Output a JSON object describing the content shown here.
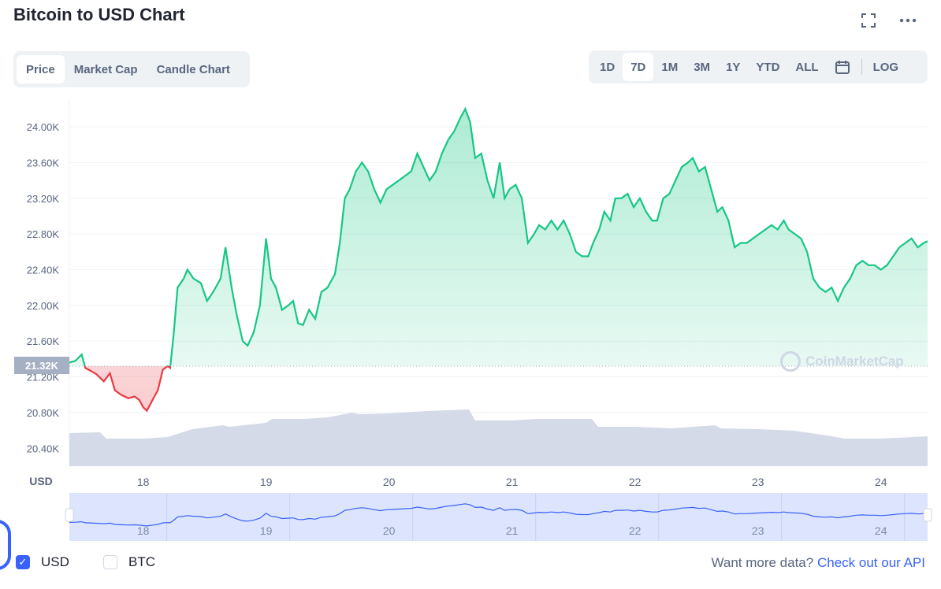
{
  "header": {
    "title": "Bitcoin to USD Chart",
    "fullscreen_icon": "fullscreen-icon",
    "more_icon": "more-icon",
    "more_glyph": "⋯",
    "fullscreen_glyph": "⛶"
  },
  "tabs": [
    {
      "label": "Price",
      "active": true
    },
    {
      "label": "Market Cap",
      "active": false
    },
    {
      "label": "Candle Chart",
      "active": false
    }
  ],
  "ranges": [
    {
      "label": "1D",
      "active": false
    },
    {
      "label": "7D",
      "active": true
    },
    {
      "label": "1M",
      "active": false
    },
    {
      "label": "3M",
      "active": false
    },
    {
      "label": "1Y",
      "active": false
    },
    {
      "label": "YTD",
      "active": false
    },
    {
      "label": "ALL",
      "active": false
    }
  ],
  "calendar_icon": "calendar-icon",
  "log_label": "LOG",
  "price_tag": "21.32K",
  "watermark": "CoinMarketCap",
  "legend": {
    "usd": {
      "label": "USD",
      "checked": true
    },
    "btc": {
      "label": "BTC",
      "checked": false
    }
  },
  "api_text": "Want more data?",
  "api_link": "Check out our API",
  "colors": {
    "up": "#16c784",
    "down": "#ea3943",
    "volume": "#cfd6e4",
    "nav_line": "#3861fb",
    "nav_fill": "#dde4fd",
    "text_muted": "#58667e"
  },
  "chart_data": {
    "type": "line",
    "currency_label": "USD",
    "ylim": [
      20200,
      24300
    ],
    "y_ticks": [
      "20.40K",
      "20.80K",
      "21.20K",
      "21.60K",
      "22.00K",
      "22.40K",
      "22.80K",
      "23.20K",
      "23.60K",
      "24.00K"
    ],
    "y_tick_values": [
      20400,
      20800,
      21200,
      21600,
      22000,
      22400,
      22800,
      23200,
      23600,
      24000
    ],
    "x_ticks": [
      "18",
      "19",
      "20",
      "21",
      "22",
      "23",
      "24"
    ],
    "x_tick_values": [
      18,
      19,
      20,
      21,
      22,
      23,
      24
    ],
    "xlim": [
      17.4,
      24.38
    ],
    "baseline": 21320,
    "series": [
      {
        "values": [
          [
            17.4,
            21360
          ],
          [
            17.45,
            21380
          ],
          [
            17.5,
            21450
          ],
          [
            17.53,
            21300
          ],
          [
            17.57,
            21270
          ],
          [
            17.62,
            21230
          ],
          [
            17.68,
            21150
          ],
          [
            17.73,
            21240
          ],
          [
            17.77,
            21050
          ],
          [
            17.82,
            21000
          ],
          [
            17.88,
            20960
          ],
          [
            17.93,
            20980
          ],
          [
            17.97,
            20940
          ],
          [
            18.0,
            20860
          ],
          [
            18.03,
            20820
          ],
          [
            18.08,
            20950
          ],
          [
            18.12,
            21050
          ],
          [
            18.16,
            21280
          ],
          [
            18.2,
            21320
          ],
          [
            18.22,
            21300
          ],
          [
            18.25,
            21700
          ],
          [
            18.28,
            22200
          ],
          [
            18.33,
            22300
          ],
          [
            18.36,
            22400
          ],
          [
            18.41,
            22300
          ],
          [
            18.47,
            22250
          ],
          [
            18.52,
            22050
          ],
          [
            18.57,
            22150
          ],
          [
            18.63,
            22300
          ],
          [
            18.67,
            22650
          ],
          [
            18.72,
            22200
          ],
          [
            18.76,
            21900
          ],
          [
            18.81,
            21600
          ],
          [
            18.85,
            21550
          ],
          [
            18.9,
            21700
          ],
          [
            18.95,
            22000
          ],
          [
            19.0,
            22750
          ],
          [
            19.04,
            22300
          ],
          [
            19.08,
            22200
          ],
          [
            19.13,
            21950
          ],
          [
            19.18,
            22000
          ],
          [
            19.22,
            22050
          ],
          [
            19.26,
            21800
          ],
          [
            19.3,
            21780
          ],
          [
            19.35,
            21950
          ],
          [
            19.4,
            21850
          ],
          [
            19.45,
            22150
          ],
          [
            19.5,
            22200
          ],
          [
            19.56,
            22350
          ],
          [
            19.6,
            22700
          ],
          [
            19.64,
            23200
          ],
          [
            19.68,
            23300
          ],
          [
            19.73,
            23500
          ],
          [
            19.78,
            23600
          ],
          [
            19.83,
            23500
          ],
          [
            19.88,
            23300
          ],
          [
            19.93,
            23150
          ],
          [
            19.98,
            23300
          ],
          [
            20.03,
            23350
          ],
          [
            20.08,
            23400
          ],
          [
            20.13,
            23450
          ],
          [
            20.18,
            23500
          ],
          [
            20.23,
            23700
          ],
          [
            20.28,
            23550
          ],
          [
            20.33,
            23400
          ],
          [
            20.38,
            23500
          ],
          [
            20.43,
            23700
          ],
          [
            20.48,
            23850
          ],
          [
            20.53,
            23950
          ],
          [
            20.58,
            24100
          ],
          [
            20.62,
            24200
          ],
          [
            20.66,
            24050
          ],
          [
            20.7,
            23650
          ],
          [
            20.75,
            23700
          ],
          [
            20.8,
            23400
          ],
          [
            20.85,
            23200
          ],
          [
            20.9,
            23600
          ],
          [
            20.94,
            23200
          ],
          [
            20.98,
            23300
          ],
          [
            21.03,
            23350
          ],
          [
            21.08,
            23200
          ],
          [
            21.13,
            22700
          ],
          [
            21.18,
            22800
          ],
          [
            21.22,
            22900
          ],
          [
            21.27,
            22850
          ],
          [
            21.32,
            22950
          ],
          [
            21.37,
            22850
          ],
          [
            21.42,
            22950
          ],
          [
            21.47,
            22800
          ],
          [
            21.52,
            22600
          ],
          [
            21.57,
            22550
          ],
          [
            21.62,
            22550
          ],
          [
            21.66,
            22700
          ],
          [
            21.71,
            22850
          ],
          [
            21.75,
            23050
          ],
          [
            21.8,
            22950
          ],
          [
            21.84,
            23200
          ],
          [
            21.89,
            23200
          ],
          [
            21.94,
            23250
          ],
          [
            21.99,
            23100
          ],
          [
            22.04,
            23200
          ],
          [
            22.09,
            23050
          ],
          [
            22.14,
            22950
          ],
          [
            22.18,
            22950
          ],
          [
            22.23,
            23200
          ],
          [
            22.28,
            23250
          ],
          [
            22.33,
            23400
          ],
          [
            22.38,
            23550
          ],
          [
            22.43,
            23600
          ],
          [
            22.47,
            23650
          ],
          [
            22.52,
            23500
          ],
          [
            22.57,
            23550
          ],
          [
            22.62,
            23300
          ],
          [
            22.67,
            23050
          ],
          [
            22.71,
            23100
          ],
          [
            22.76,
            22950
          ],
          [
            22.81,
            22650
          ],
          [
            22.86,
            22700
          ],
          [
            22.91,
            22700
          ],
          [
            22.96,
            22750
          ],
          [
            23.01,
            22800
          ],
          [
            23.06,
            22850
          ],
          [
            23.11,
            22900
          ],
          [
            23.16,
            22850
          ],
          [
            23.21,
            22950
          ],
          [
            23.25,
            22850
          ],
          [
            23.3,
            22800
          ],
          [
            23.35,
            22750
          ],
          [
            23.4,
            22600
          ],
          [
            23.45,
            22300
          ],
          [
            23.5,
            22200
          ],
          [
            23.55,
            22150
          ],
          [
            23.6,
            22200
          ],
          [
            23.65,
            22050
          ],
          [
            23.7,
            22200
          ],
          [
            23.75,
            22300
          ],
          [
            23.8,
            22450
          ],
          [
            23.85,
            22500
          ],
          [
            23.9,
            22450
          ],
          [
            23.95,
            22450
          ],
          [
            24.0,
            22400
          ],
          [
            24.05,
            22450
          ],
          [
            24.1,
            22550
          ],
          [
            24.15,
            22650
          ],
          [
            24.2,
            22700
          ],
          [
            24.25,
            22750
          ],
          [
            24.3,
            22650
          ],
          [
            24.35,
            22700
          ],
          [
            24.38,
            22720
          ]
        ]
      }
    ],
    "volume": [
      [
        17.4,
        0.42
      ],
      [
        17.65,
        0.43
      ],
      [
        17.7,
        0.35
      ],
      [
        18.0,
        0.35
      ],
      [
        18.2,
        0.37
      ],
      [
        18.4,
        0.47
      ],
      [
        18.65,
        0.52
      ],
      [
        18.7,
        0.5
      ],
      [
        19.0,
        0.55
      ],
      [
        19.05,
        0.6
      ],
      [
        19.3,
        0.6
      ],
      [
        19.5,
        0.62
      ],
      [
        19.7,
        0.68
      ],
      [
        19.75,
        0.66
      ],
      [
        20.0,
        0.67
      ],
      [
        20.3,
        0.7
      ],
      [
        20.65,
        0.72
      ],
      [
        20.7,
        0.58
      ],
      [
        21.0,
        0.58
      ],
      [
        21.2,
        0.6
      ],
      [
        21.65,
        0.6
      ],
      [
        21.7,
        0.5
      ],
      [
        22.0,
        0.5
      ],
      [
        22.3,
        0.48
      ],
      [
        22.65,
        0.52
      ],
      [
        22.7,
        0.48
      ],
      [
        23.0,
        0.47
      ],
      [
        23.3,
        0.45
      ],
      [
        23.6,
        0.38
      ],
      [
        23.7,
        0.35
      ],
      [
        24.0,
        0.35
      ],
      [
        24.38,
        0.38
      ]
    ]
  }
}
